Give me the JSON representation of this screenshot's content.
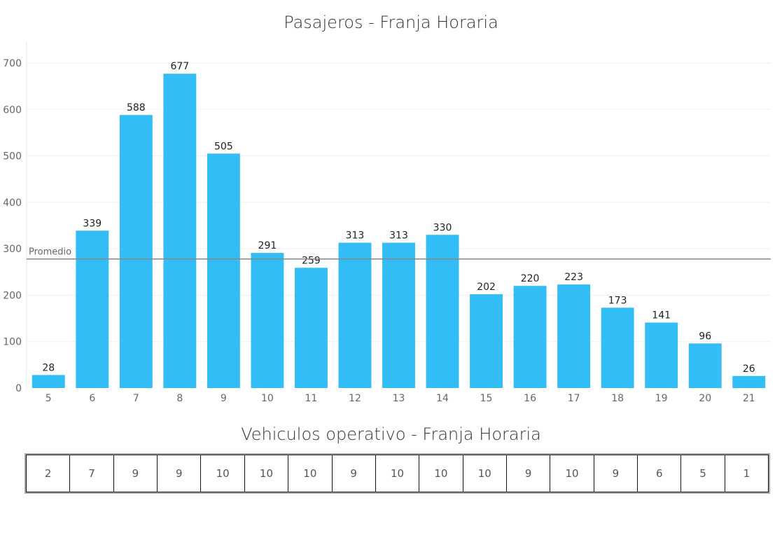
{
  "chart_data": {
    "type": "bar",
    "title": "Pasajeros - Franja Horaria",
    "categories": [
      "5",
      "6",
      "7",
      "8",
      "9",
      "10",
      "11",
      "12",
      "13",
      "14",
      "15",
      "16",
      "17",
      "18",
      "19",
      "20",
      "21"
    ],
    "values": [
      28,
      339,
      588,
      677,
      505,
      291,
      259,
      313,
      313,
      330,
      202,
      220,
      223,
      173,
      141,
      96,
      26
    ],
    "ylim": [
      0,
      700
    ],
    "yticks": [
      0,
      100,
      200,
      300,
      400,
      500,
      600,
      700
    ],
    "reference_line": {
      "label": "Promedio",
      "value": 278
    },
    "bar_color": "#33bdf6",
    "grid": true
  },
  "table": {
    "title": "Vehiculos operativo - Franja Horaria",
    "values": [
      "2",
      "7",
      "9",
      "9",
      "10",
      "10",
      "10",
      "9",
      "10",
      "10",
      "10",
      "9",
      "10",
      "9",
      "6",
      "5",
      "1"
    ]
  }
}
